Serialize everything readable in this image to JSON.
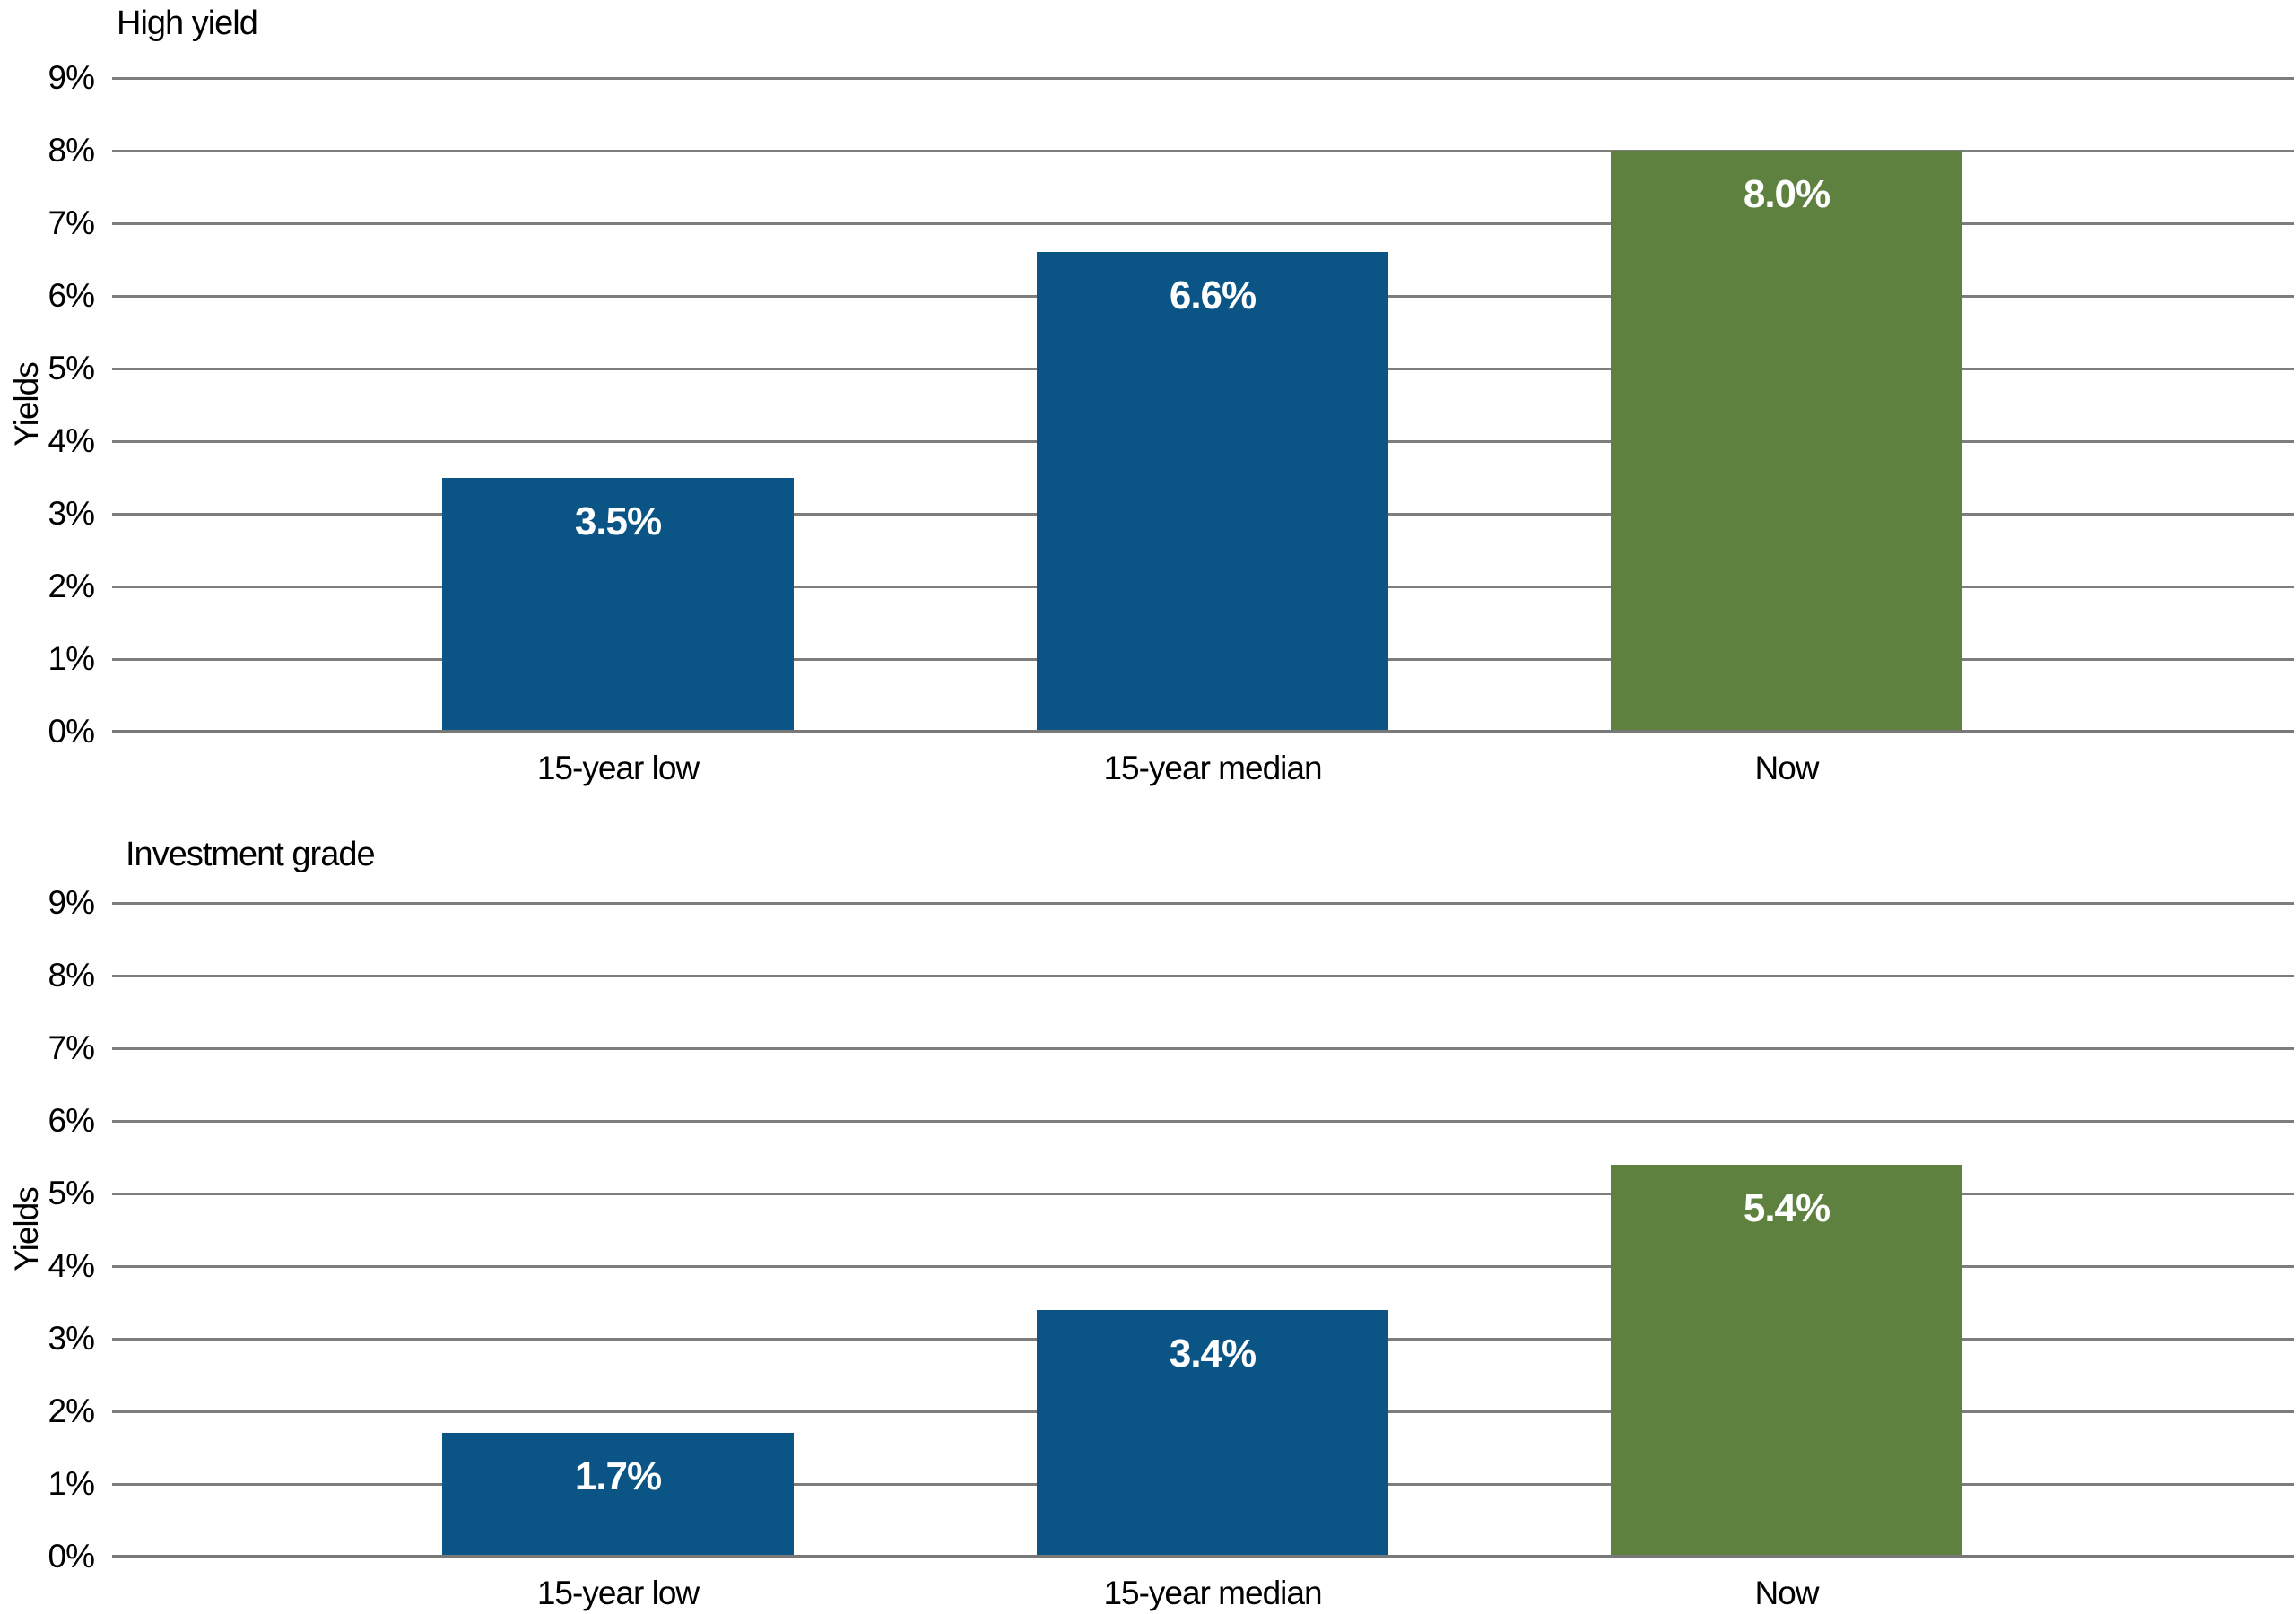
{
  "page": {
    "background_color": "#FFFFFF"
  },
  "colors": {
    "bar_blue": "#0B5586",
    "bar_green": "#5E8140",
    "gridline_gray": "#7D7D7D",
    "axis_text_black": "#000000",
    "value_label_white": "#FFFFFF"
  },
  "chart_data": [
    {
      "type": "bar",
      "title": "High yield",
      "xlabel": "",
      "ylabel": "Yields",
      "categories": [
        "15-year low",
        "15-year median",
        "Now"
      ],
      "values": [
        3.5,
        6.6,
        8.0
      ],
      "value_labels": [
        "3.5%",
        "6.6%",
        "8.0%"
      ],
      "bar_colors": [
        "#0B5586",
        "#0B5586",
        "#5E8140"
      ],
      "ylim": [
        0,
        9
      ],
      "ytick_step": 1,
      "ytick_labels": [
        "0%",
        "1%",
        "2%",
        "3%",
        "4%",
        "5%",
        "6%",
        "7%",
        "8%",
        "9%"
      ],
      "grid": true,
      "legend_position": "none"
    },
    {
      "type": "bar",
      "title": "Investment grade",
      "xlabel": "",
      "ylabel": "Yields",
      "categories": [
        "15-year low",
        "15-year median",
        "Now"
      ],
      "values": [
        1.7,
        3.4,
        5.4
      ],
      "value_labels": [
        "1.7%",
        "3.4%",
        "5.4%"
      ],
      "bar_colors": [
        "#0B5586",
        "#0B5586",
        "#5E8140"
      ],
      "ylim": [
        0,
        9
      ],
      "ytick_step": 1,
      "ytick_labels": [
        "0%",
        "1%",
        "2%",
        "3%",
        "4%",
        "5%",
        "6%",
        "7%",
        "8%",
        "9%"
      ],
      "grid": true,
      "legend_position": "none"
    }
  ]
}
